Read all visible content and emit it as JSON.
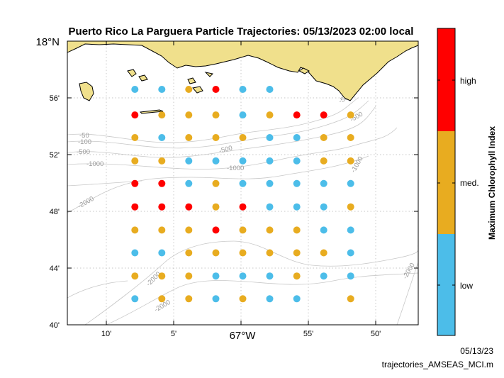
{
  "title": "Puerto Rico La Parguera  Particle Trajectories: 05/13/2023 02:00 local",
  "map": {
    "lat_top_label": "18°N",
    "lat_labels": [
      "56'",
      "52'",
      "48'",
      "44'",
      "40'"
    ],
    "lon_labels": [
      "10'",
      "5'",
      "67°W",
      "55'",
      "50'"
    ],
    "lat_range": [
      17.6667,
      18.0
    ],
    "lon_range": [
      -67.2167,
      -66.7833
    ],
    "land_color": "#f0e08c",
    "grid": "dotted"
  },
  "bathymetry_labels": [
    {
      "text": "-50"
    },
    {
      "text": "-100"
    },
    {
      "text": "-500"
    },
    {
      "text": "-1000"
    },
    {
      "text": "-500"
    },
    {
      "text": "-1000"
    },
    {
      "text": "-500"
    },
    {
      "text": "-500"
    },
    {
      "text": "-1000"
    },
    {
      "text": "-2000"
    },
    {
      "text": "-2000"
    },
    {
      "text": "-2000"
    },
    {
      "text": "-2000"
    }
  ],
  "colorbar": {
    "title": "Maximum Chlorophyll Index",
    "levels": [
      {
        "label": "high",
        "color": "#ff0000"
      },
      {
        "label": "med.",
        "color": "#e8ac20"
      },
      {
        "label": "low",
        "color": "#4cbde9"
      }
    ]
  },
  "chart_data": {
    "type": "scatter",
    "title": "Puerto Rico La Parguera  Particle Trajectories: 05/13/2023 02:00 local",
    "lon_columns": [
      -67.1333,
      -67.1,
      -67.0667,
      -67.0333,
      -67.0,
      -66.9667,
      -66.9333,
      -66.9,
      -66.8667
    ],
    "lat_rows": [
      17.9433,
      17.9133,
      17.8867,
      17.8593,
      17.8327,
      17.8053,
      17.778,
      17.7513,
      17.724,
      17.6973
    ],
    "category_key": {
      "L": "low",
      "M": "med.",
      "H": "high",
      "-": "none"
    },
    "grid": [
      "LLMHLL---",
      "HMMMLMHHM",
      "MLMMMLLMM",
      "MMLLLLLMM",
      "HHLMLLLLL",
      "HHHMHLLLM",
      "MMMHMMMLL",
      "LLMMMMMML",
      "MMMLLLMLL",
      "LMMLMLL-M"
    ]
  },
  "footer": {
    "date": "05/13/23",
    "script": "trajectories_AMSEAS_MCI.m"
  }
}
